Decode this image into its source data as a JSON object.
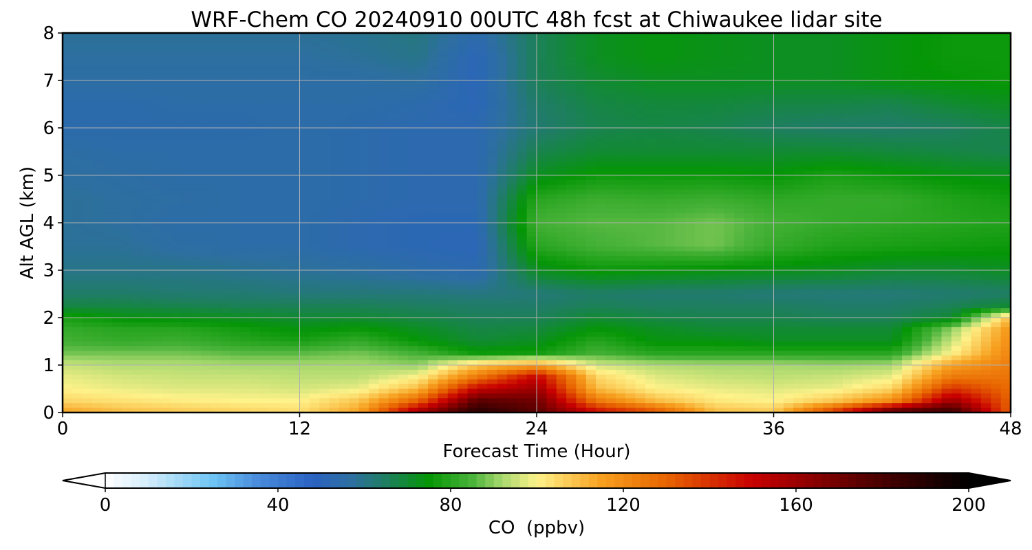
{
  "chart_data": {
    "type": "heatmap",
    "title": "WRF-Chem CO  20240910 00UTC 48h fcst at Chiwaukee lidar site",
    "xlabel": "Forecast Time (Hour)",
    "ylabel": "Alt AGL (km)",
    "xlim": [
      0,
      48
    ],
    "ylim": [
      0,
      8
    ],
    "xticks": [
      0,
      12,
      24,
      36,
      48
    ],
    "yticks": [
      0,
      1,
      2,
      3,
      4,
      5,
      6,
      7,
      8
    ],
    "grid": true,
    "x_hours": [
      0,
      3,
      6,
      9,
      12,
      15,
      18,
      21,
      24,
      27,
      30,
      33,
      36,
      39,
      42,
      45,
      48
    ],
    "y_km": [
      0,
      0.25,
      0.5,
      0.75,
      1,
      1.25,
      1.5,
      1.75,
      2,
      2.25,
      2.5,
      3,
      3.5,
      4,
      4.5,
      5,
      5.5,
      6,
      6.5,
      7,
      7.5,
      8
    ],
    "values_ppbv": [
      [
        115,
        110,
        108,
        106,
        104,
        115,
        160,
        190,
        175,
        150,
        135,
        110,
        108,
        140,
        180,
        185,
        130
      ],
      [
        105,
        103,
        101,
        100,
        100,
        108,
        130,
        175,
        170,
        125,
        110,
        102,
        100,
        108,
        120,
        160,
        130
      ],
      [
        100,
        98,
        97,
        97,
        96,
        98,
        110,
        150,
        160,
        110,
        100,
        98,
        97,
        98,
        105,
        140,
        128
      ],
      [
        98,
        96,
        95,
        95,
        94,
        94,
        100,
        125,
        150,
        105,
        97,
        95,
        94,
        95,
        98,
        125,
        126
      ],
      [
        95,
        93,
        93,
        92,
        92,
        92,
        90,
        108,
        115,
        96,
        93,
        92,
        92,
        91,
        92,
        115,
        124
      ],
      [
        88,
        88,
        88,
        86,
        86,
        88,
        84,
        76,
        77,
        84,
        80,
        80,
        80,
        80,
        80,
        100,
        122
      ],
      [
        84,
        82,
        83,
        80,
        78,
        82,
        75,
        70,
        72,
        80,
        74,
        74,
        72,
        72,
        72,
        95,
        120
      ],
      [
        82,
        80,
        80,
        77,
        74,
        76,
        72,
        68,
        69,
        75,
        72,
        70,
        70,
        70,
        70,
        90,
        118
      ],
      [
        78,
        74,
        73,
        72,
        70,
        70,
        68,
        66,
        66,
        70,
        68,
        67,
        67,
        66,
        66,
        70,
        110
      ],
      [
        68,
        68,
        67,
        66,
        66,
        66,
        65,
        64,
        64,
        66,
        65,
        65,
        65,
        64,
        64,
        66,
        70
      ],
      [
        64,
        64,
        63,
        63,
        62,
        62,
        62,
        61,
        62,
        64,
        63,
        63,
        62,
        62,
        62,
        63,
        64
      ],
      [
        60,
        60,
        60,
        59,
        58,
        57,
        55,
        53,
        72,
        76,
        75,
        74,
        73,
        72,
        70,
        70,
        72
      ],
      [
        58,
        58,
        56,
        55,
        55,
        53,
        52,
        51,
        80,
        84,
        86,
        88,
        82,
        79,
        78,
        77,
        76
      ],
      [
        58,
        57,
        55,
        55,
        55,
        53,
        52,
        52,
        84,
        86,
        86,
        88,
        84,
        82,
        81,
        80,
        79
      ],
      [
        58,
        57,
        56,
        55,
        55,
        54,
        53,
        53,
        80,
        83,
        82,
        83,
        81,
        82,
        82,
        79,
        77
      ],
      [
        57,
        56,
        55,
        55,
        55,
        54,
        53,
        53,
        72,
        76,
        76,
        76,
        75,
        78,
        76,
        74,
        73
      ],
      [
        56,
        55,
        55,
        55,
        55,
        54,
        53,
        53,
        67,
        70,
        70,
        70,
        70,
        70,
        69,
        68,
        67
      ],
      [
        54,
        54,
        54,
        54,
        55,
        54,
        53,
        53,
        63,
        67,
        68,
        67,
        65,
        64,
        64,
        65,
        68
      ],
      [
        54,
        54,
        55,
        55,
        55,
        55,
        54,
        51,
        64,
        68,
        69,
        69,
        68,
        68,
        67,
        70,
        72
      ],
      [
        56,
        56,
        56,
        56,
        56,
        56,
        57,
        51,
        66,
        70,
        72,
        72,
        72,
        72,
        74,
        75,
        76
      ],
      [
        57,
        57,
        57,
        57,
        57,
        58,
        60,
        51,
        66,
        72,
        74,
        73,
        72,
        72,
        74,
        76,
        76
      ],
      [
        58,
        58,
        58,
        58,
        58,
        59,
        61,
        54,
        66,
        72,
        74,
        73,
        72,
        72,
        74,
        76,
        76
      ]
    ],
    "colorbar": {
      "label": "CO  (ppbv)",
      "vmin": 0,
      "vmax": 200,
      "ticks": [
        0,
        40,
        80,
        120,
        160,
        200
      ],
      "extend": "both",
      "stops": [
        {
          "v": 0,
          "c": "#ffffff"
        },
        {
          "v": 10,
          "c": "#d2ecfa"
        },
        {
          "v": 25,
          "c": "#6dc4f4"
        },
        {
          "v": 35,
          "c": "#4a8ddc"
        },
        {
          "v": 48,
          "c": "#2a62c2"
        },
        {
          "v": 57,
          "c": "#2d6fa0"
        },
        {
          "v": 65,
          "c": "#1e7e60"
        },
        {
          "v": 75,
          "c": "#059606"
        },
        {
          "v": 85,
          "c": "#4ab33a"
        },
        {
          "v": 92,
          "c": "#a8d96e"
        },
        {
          "v": 100,
          "c": "#fef28a"
        },
        {
          "v": 115,
          "c": "#f7a01f"
        },
        {
          "v": 130,
          "c": "#e86400"
        },
        {
          "v": 150,
          "c": "#c80000"
        },
        {
          "v": 175,
          "c": "#5a0000"
        },
        {
          "v": 200,
          "c": "#000000"
        }
      ]
    }
  }
}
